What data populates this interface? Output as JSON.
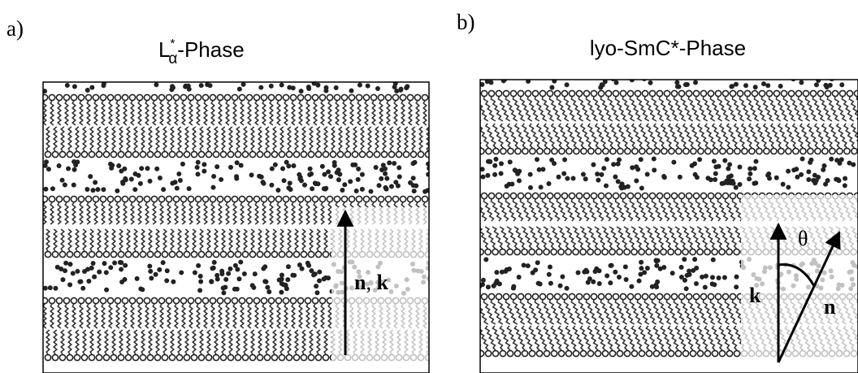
{
  "panel_a": {
    "label": "a)",
    "title": {
      "base": "L",
      "sup": "*",
      "sub": "α",
      "rest": "-Phase"
    },
    "arrow_label": {
      "n": "n",
      "sep": ", ",
      "k": "k"
    }
  },
  "panel_b": {
    "label": "b)",
    "title": "lyo-SmC*-Phase",
    "theta": "θ",
    "k": "k",
    "n": "n"
  }
}
